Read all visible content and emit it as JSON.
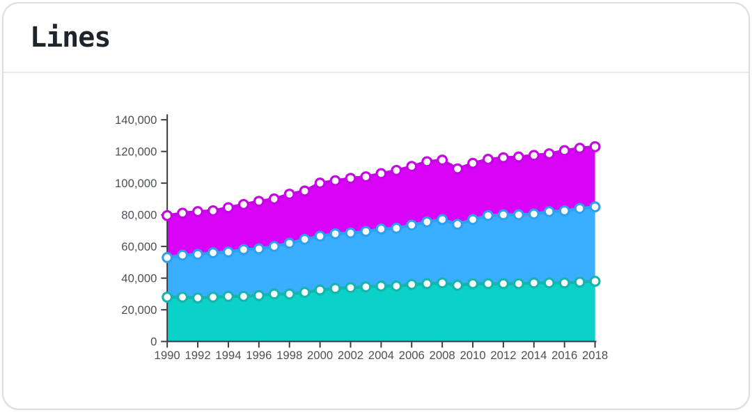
{
  "card": {
    "title": "Lines"
  },
  "chart_data": {
    "type": "area",
    "title": "Lines",
    "legend": "none",
    "grid": false,
    "stacked_appearance": true,
    "x": [
      1990,
      1991,
      1992,
      1993,
      1994,
      1995,
      1996,
      1997,
      1998,
      1999,
      2000,
      2001,
      2002,
      2003,
      2004,
      2005,
      2006,
      2007,
      2008,
      2009,
      2010,
      2011,
      2012,
      2013,
      2014,
      2015,
      2016,
      2017,
      2018
    ],
    "series": [
      {
        "name": "magenta-top-series",
        "line_color": "#c703e6",
        "fill_color": "#d803f7",
        "values": [
          79500,
          81000,
          82000,
          82500,
          84500,
          86500,
          88500,
          90000,
          93000,
          95000,
          100000,
          101500,
          103000,
          104000,
          106000,
          108000,
          110500,
          113500,
          114500,
          109000,
          112500,
          115000,
          116000,
          116500,
          117500,
          118500,
          120500,
          122000,
          123000
        ]
      },
      {
        "name": "blue-middle-series",
        "line_color": "#2f9ff0",
        "fill_color": "#3aaeff",
        "values": [
          53000,
          54500,
          55000,
          56000,
          56500,
          58000,
          58500,
          60000,
          62000,
          64500,
          66500,
          68000,
          68500,
          69500,
          71000,
          71500,
          73500,
          75500,
          77000,
          74000,
          77000,
          79500,
          80000,
          80000,
          80500,
          82000,
          82500,
          84000,
          85000
        ]
      },
      {
        "name": "teal-bottom-series",
        "line_color": "#14b5ac",
        "fill_color": "#0bd1c8",
        "values": [
          28000,
          28000,
          27500,
          28000,
          28500,
          28500,
          29000,
          30000,
          30000,
          31000,
          32500,
          33500,
          34000,
          34500,
          35000,
          35000,
          36000,
          36500,
          37000,
          35500,
          36500,
          36500,
          36500,
          36500,
          37000,
          37000,
          37000,
          37500,
          38000
        ]
      }
    ],
    "xlabel": "",
    "ylabel": "",
    "xlim": [
      1990,
      2018
    ],
    "ylim": [
      0,
      140000
    ],
    "xticks": [
      1990,
      1992,
      1994,
      1996,
      1998,
      2000,
      2002,
      2004,
      2006,
      2008,
      2010,
      2012,
      2014,
      2016,
      2018
    ],
    "yticks": [
      0,
      20000,
      40000,
      60000,
      80000,
      100000,
      120000,
      140000
    ],
    "ytick_labels": [
      "0",
      "20,000",
      "40,000",
      "60,000",
      "80,000",
      "100,000",
      "120,000",
      "140,000"
    ],
    "point_style": "white-circle-with-colored-ring",
    "axis_color": "#343a40",
    "tick_label_color": "#4c5058"
  }
}
